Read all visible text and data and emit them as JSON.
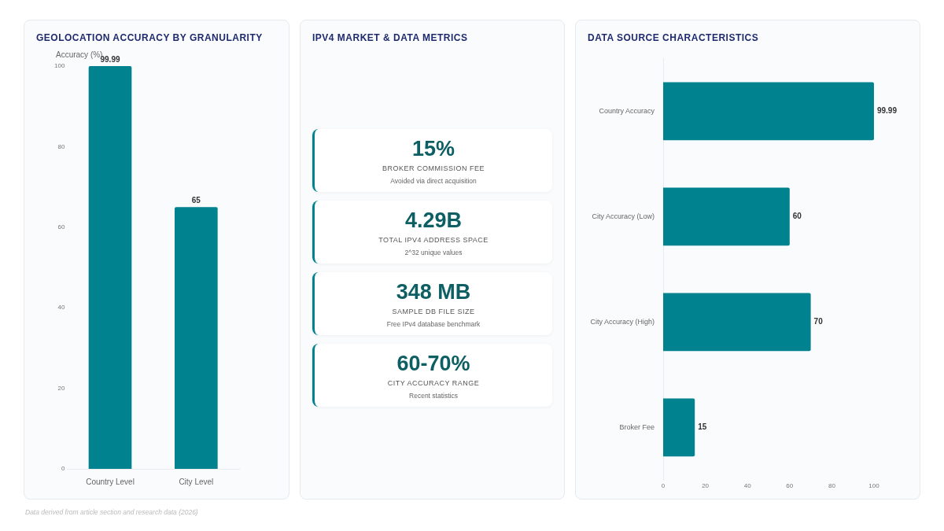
{
  "chart_data": [
    {
      "type": "bar",
      "title": "GEOLOCATION ACCURACY BY GRANULARITY",
      "ylabel": "Accuracy (%)",
      "categories": [
        "Country Level",
        "City Level"
      ],
      "values": [
        99.99,
        65
      ],
      "color": "#00838f",
      "ylim": [
        0,
        100
      ],
      "yticks": [
        0,
        20,
        40,
        60,
        80,
        100
      ],
      "grid": false,
      "legend": false,
      "data_labels": true,
      "annotations": [
        "Data derived from article section and research data (2026)"
      ]
    },
    {
      "type": "other",
      "title": "IPV4 MARKET & DATA METRICS",
      "annotations": [
        "15%",
        "BROKER COMMISSION FEE",
        "Avoided via direct acquisition",
        "4.29B",
        "TOTAL IPV4 ADDRESS SPACE",
        "2^32 unique values",
        "348 MB",
        "SAMPLE DB FILE SIZE",
        "Free IPv4 database benchmark",
        "60-70%",
        "CITY ACCURACY RANGE",
        "Recent statistics"
      ]
    },
    {
      "type": "bar",
      "orientation": "horizontal",
      "title": "DATA SOURCE CHARACTERISTICS",
      "categories": [
        "Country Accuracy",
        "City Accuracy (Low)",
        "City Accuracy (High)",
        "Broker Fee"
      ],
      "values": [
        99.99,
        60,
        70,
        15
      ],
      "color": "#00838f",
      "xlim": [
        0,
        100
      ],
      "xticks": [
        0,
        20,
        40,
        60,
        80,
        100
      ],
      "grid": false,
      "legend": false,
      "data_labels": true
    }
  ]
}
